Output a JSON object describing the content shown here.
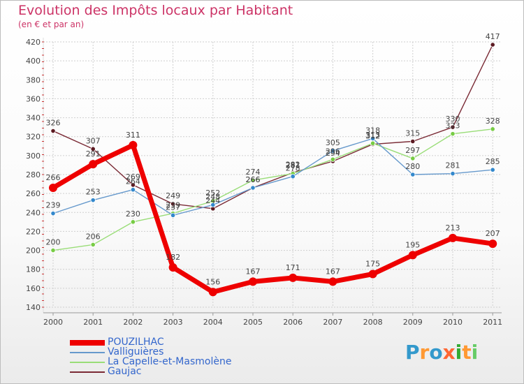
{
  "title": "Evolution des Impôts locaux par Habitant",
  "subtitle": "(en € et par an)",
  "logo": {
    "text": "Proxiti",
    "colors": [
      "#3399cc",
      "#ff9933",
      "#3399cc",
      "#ff6633",
      "#33aa33",
      "#ff9933",
      "#66cc66"
    ]
  },
  "chart_data": {
    "type": "line",
    "title": "Evolution des Impôts locaux par Habitant",
    "subtitle": "(en € et par an)",
    "xlabel": "",
    "ylabel": "",
    "x": [
      "2000",
      "2001",
      "2002",
      "2003",
      "2004",
      "2005",
      "2006",
      "2007",
      "2008",
      "2009",
      "2010",
      "2011"
    ],
    "ylim": [
      140,
      420
    ],
    "yticks": [
      140,
      160,
      180,
      200,
      220,
      240,
      260,
      280,
      300,
      320,
      340,
      360,
      380,
      400,
      420
    ],
    "grid": true,
    "series": [
      {
        "name": "Gaujac",
        "color": "#7a2a35",
        "marker": "#5c1a22",
        "labelColor": "#444444",
        "values": [
          326,
          307,
          269,
          249,
          244,
          266,
          282,
          294,
          312,
          315,
          330,
          417
        ]
      },
      {
        "name": "La Capelle-et-Masmolène",
        "color": "#99dd77",
        "marker": "#77cc44",
        "labelColor": "#444444",
        "values": [
          200,
          206,
          230,
          239,
          252,
          274,
          281,
          296,
          313,
          297,
          323,
          328
        ]
      },
      {
        "name": "Valliguières",
        "color": "#6699cc",
        "marker": "#3388cc",
        "labelColor": "#444444",
        "values": [
          239,
          253,
          264,
          237,
          248,
          266,
          278,
          305,
          318,
          280,
          281,
          285
        ]
      },
      {
        "name": "POUZILHAC",
        "color": "#ee0000",
        "marker": "#ee0000",
        "labelColor": "#444444",
        "values": [
          266,
          291,
          311,
          182,
          156,
          167,
          171,
          167,
          175,
          195,
          213,
          207
        ]
      }
    ]
  }
}
